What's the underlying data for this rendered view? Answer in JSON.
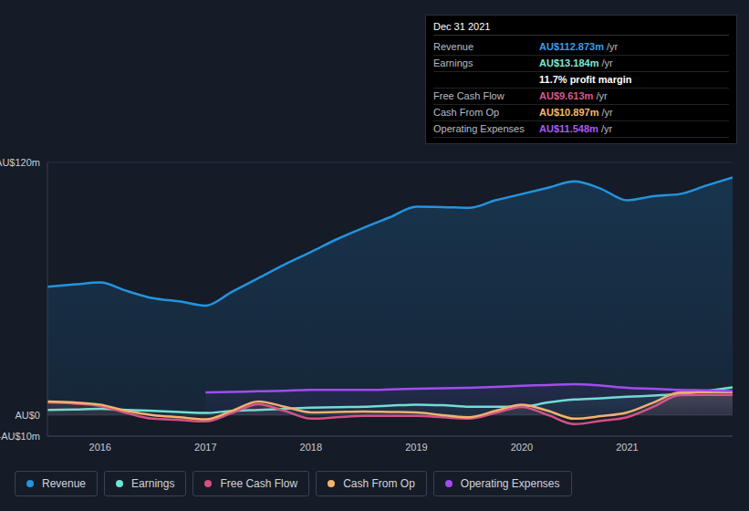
{
  "chart_data": {
    "type": "area",
    "x": [
      2015.5,
      2015.75,
      2016,
      2016.25,
      2016.5,
      2016.75,
      2017,
      2017.25,
      2017.5,
      2017.75,
      2018,
      2018.25,
      2018.5,
      2018.75,
      2019,
      2019.25,
      2019.5,
      2019.75,
      2020,
      2020.25,
      2020.5,
      2020.75,
      2021,
      2021.25,
      2021.5,
      2021.75,
      2022
    ],
    "series": [
      {
        "name": "Revenue",
        "color": "#2394df",
        "values": [
          61,
          62,
          63,
          59,
          55.5,
          54,
          52,
          58.5,
          65,
          71.5,
          77.5,
          83.6,
          89,
          94,
          99,
          98.8,
          98.4,
          102,
          105,
          108,
          111,
          107.5,
          102,
          104,
          105,
          109,
          112.9
        ]
      },
      {
        "name": "Earnings",
        "color": "#6fe3d4",
        "values": [
          2.5,
          2.7,
          3,
          2.5,
          2,
          1.5,
          1,
          2,
          2.5,
          3,
          3.5,
          3.8,
          4,
          4.5,
          5,
          4.7,
          4,
          4,
          4,
          6,
          7.4,
          8,
          8.7,
          9.3,
          10,
          11.5,
          13.2
        ]
      },
      {
        "name": "Free Cash Flow",
        "color": "#d64f84",
        "values": [
          6,
          5.5,
          4.3,
          1,
          -1.7,
          -2.3,
          -3,
          1,
          5.2,
          2,
          -1.7,
          -1,
          -0.4,
          -0.4,
          -0.4,
          -1,
          -1.7,
          1,
          3.9,
          0,
          -4.3,
          -2.7,
          -1,
          4,
          9.5,
          9.6,
          9.6
        ]
      },
      {
        "name": "Cash From Op",
        "color": "#f2b46c",
        "values": [
          6.5,
          6,
          5,
          2,
          0,
          -1,
          -2,
          2,
          6.5,
          4,
          1.3,
          1.5,
          1.7,
          1.5,
          1.3,
          0,
          -1,
          2,
          5,
          2,
          -1.7,
          -0.5,
          1.3,
          6,
          10.8,
          10.9,
          10.9
        ]
      },
      {
        "name": "Operating Expenses",
        "color": "#a24cf2",
        "values": [
          null,
          null,
          null,
          null,
          null,
          null,
          10.8,
          11,
          11.3,
          11.6,
          12,
          12,
          12,
          12.2,
          12.5,
          12.7,
          13,
          13.4,
          13.9,
          14.3,
          14.7,
          14,
          13,
          12.5,
          12,
          11.8,
          11.5
        ]
      }
    ],
    "xlim": [
      2015.5,
      2022
    ],
    "xticks": [
      2016,
      2017,
      2018,
      2019,
      2020,
      2021
    ],
    "ylim": [
      -10,
      120
    ],
    "yticks": [
      {
        "value": -10,
        "label": "-AU$10m"
      },
      {
        "value": 0,
        "label": "AU$0"
      },
      {
        "value": 120,
        "label": "AU$120m"
      }
    ],
    "grid": true,
    "legend": "bottom",
    "annotation": {
      "title": "Dec 31 2021",
      "rows": [
        {
          "label": "Revenue",
          "value": "AU$112.873m",
          "suffix": "/yr",
          "color": "#3d9be9"
        },
        {
          "label": "Earnings",
          "value": "AU$13.184m",
          "suffix": "/yr",
          "color": "#7de8d8"
        },
        {
          "value": "11.7% profit margin",
          "color": "#ffffff"
        },
        {
          "label": "Free Cash Flow",
          "value": "AU$9.613m",
          "suffix": "/yr",
          "color": "#d65a8c"
        },
        {
          "label": "Cash From Op",
          "value": "AU$10.897m",
          "suffix": "/yr",
          "color": "#f3b86e"
        },
        {
          "label": "Operating Expenses",
          "value": "AU$11.548m",
          "suffix": "/yr",
          "color": "#a65cf5"
        }
      ]
    }
  }
}
